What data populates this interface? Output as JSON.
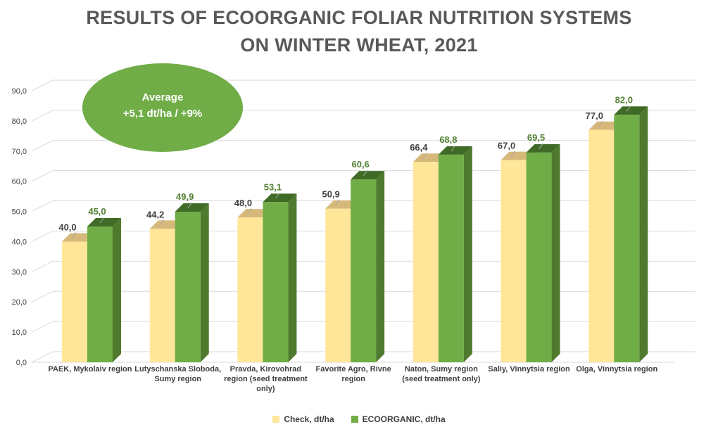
{
  "chart_data": {
    "type": "bar",
    "title_line1": "RESULTS OF ECOORGANIC FOLIAR NUTRITION SYSTEMS",
    "title_line2": "ON WINTER WHEAT, 2021",
    "ylim": [
      0,
      90
    ],
    "yticks": [
      "0,0",
      "10,0",
      "20,0",
      "30,0",
      "40,0",
      "50,0",
      "60,0",
      "70,0",
      "80,0",
      "90,0"
    ],
    "categories": [
      [
        "PAEK, Mykolaiv region"
      ],
      [
        "Lutyschanska Sloboda,",
        "Sumy region"
      ],
      [
        "Pravda, Kirovohrad",
        "region (seed treatment",
        "only)"
      ],
      [
        "Favorite Agro, Rivne",
        "region"
      ],
      [
        "Naton, Sumy region",
        "(seed treatment only)"
      ],
      [
        "Saliy, Vinnytsia region"
      ],
      [
        "Olga, Vinnytsia region"
      ]
    ],
    "series": [
      {
        "name": "Check, dt/ha",
        "color": "#FFE699",
        "top_color": "#D6B97A",
        "values": [
          40.0,
          44.2,
          48.0,
          50.9,
          66.4,
          67.0,
          77.0
        ],
        "labels": [
          "40,0",
          "44,2",
          "48,0",
          "50,9",
          "66,4",
          "67,0",
          "77,0"
        ]
      },
      {
        "name": "ECOORGANIC, dt/ha",
        "color": "#70AD47",
        "side_color": "#4F7A2E",
        "top_color": "#3F6B26",
        "values": [
          45.0,
          49.9,
          53.1,
          60.6,
          68.8,
          69.5,
          82.0
        ],
        "labels": [
          "45,0",
          "49,9",
          "53,1",
          "60,6",
          "68,8",
          "69,5",
          "82,0"
        ]
      }
    ],
    "annotation": {
      "line1": "Average",
      "line2": "+5,1 dt/ha / +9%",
      "color": "#70AD47"
    },
    "legend_position": "bottom"
  }
}
